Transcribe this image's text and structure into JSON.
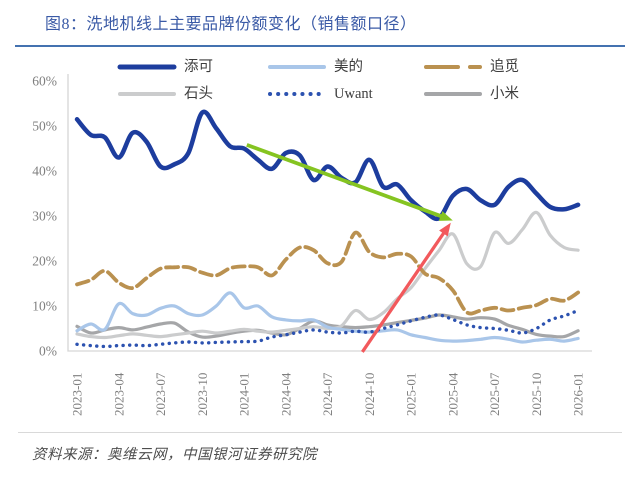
{
  "figure": {
    "title": "图8：洗地机线上主要品牌份额变化（销售额口径）",
    "source_note": "资料来源：奥维云网，中国银河证券研究院"
  },
  "colors": {
    "title_blue": "#3A5AA6",
    "title_rule_blue": "#4472B0",
    "axis_line": "#D6D6D6",
    "axis_text": "#7F7F7F",
    "legend_text": "#3D3D3D",
    "footer_text": "#4D4D4D",
    "green_arrow": "#85C421",
    "red_arrow": "#F2595C"
  },
  "chart_data": {
    "type": "line",
    "title": "洗地机线上主要品牌份额变化（销售额口径）",
    "xlabel": "",
    "ylabel": "",
    "ylim": [
      0,
      60
    ],
    "grid": false,
    "legend_position": "top",
    "y_tick_labels": [
      "0%",
      "10%",
      "20%",
      "30%",
      "40%",
      "50%",
      "60%"
    ],
    "x_tick_labels": [
      "2023-01",
      "2023-04",
      "2023-07",
      "2023-10",
      "2024-01",
      "2024-04",
      "2024-07",
      "2024-10",
      "2025-01",
      "2025-04",
      "2025-07",
      "2025-10",
      "2026-01"
    ],
    "x": [
      "2023-01",
      "2023-02",
      "2023-03",
      "2023-04",
      "2023-05",
      "2023-06",
      "2023-07",
      "2023-08",
      "2023-09",
      "2023-10",
      "2023-11",
      "2023-12",
      "2024-01",
      "2024-02",
      "2024-03",
      "2024-04",
      "2024-05",
      "2024-06",
      "2024-07",
      "2024-08",
      "2024-09",
      "2024-10",
      "2024-11",
      "2024-12",
      "2025-01",
      "2025-02",
      "2025-03",
      "2025-04",
      "2025-05",
      "2025-06",
      "2025-07",
      "2025-08",
      "2025-09",
      "2025-10",
      "2025-11",
      "2025-12",
      "2026-01"
    ],
    "series": [
      {
        "key": "tineco",
        "name": "添可",
        "color": "#1D3D9E",
        "width": 4.5,
        "dash": null,
        "values": [
          51.5,
          48,
          47.5,
          43,
          48.5,
          46.5,
          41,
          41.5,
          44,
          53,
          49.5,
          45.5,
          45,
          42.5,
          40.5,
          44,
          43.5,
          38,
          41,
          38.5,
          37.5,
          42.5,
          36.5,
          37,
          33.5,
          31,
          29.5,
          34.5,
          36,
          33.5,
          32.5,
          36.5,
          38,
          35,
          32,
          31.5,
          32.5
        ]
      },
      {
        "key": "meidi",
        "name": "美的",
        "color": "#A9C6E9",
        "width": 3.2,
        "dash": null,
        "values": [
          4.5,
          6,
          4.8,
          10.5,
          8.3,
          8,
          9.5,
          10,
          8.3,
          8,
          10,
          12.9,
          9.6,
          10,
          7.6,
          6.9,
          6.7,
          6.9,
          5.3,
          4.8,
          4.4,
          4.2,
          4.5,
          4.7,
          3.6,
          3,
          2.4,
          2.2,
          2.3,
          2.6,
          3,
          2.6,
          2,
          2.4,
          2.6,
          2.2,
          2.8
        ]
      },
      {
        "key": "zhuimi",
        "name": "追觅",
        "color": "#BA9150",
        "width": 3.8,
        "dash": "12 5.5",
        "values": [
          14.8,
          15.8,
          17.8,
          15.2,
          14,
          16.2,
          18.3,
          18.6,
          18.6,
          17.4,
          16.8,
          18.4,
          18.8,
          18.6,
          16.8,
          20.3,
          23,
          22.4,
          19.5,
          19.8,
          26.3,
          22,
          20.8,
          21.6,
          21,
          17.2,
          16.2,
          13.5,
          8.6,
          9,
          9.6,
          9,
          9.6,
          10.2,
          11.6,
          11.2,
          13
        ]
      },
      {
        "key": "shitou",
        "name": "石头",
        "color": "#CBCCCD",
        "width": 3.2,
        "dash": null,
        "values": [
          3.8,
          3.2,
          3,
          3.4,
          3.8,
          3.5,
          3.2,
          3.6,
          4,
          4.4,
          4,
          4.4,
          4.8,
          4.4,
          4.2,
          4.6,
          5,
          5.4,
          5,
          5.6,
          9,
          7,
          8.5,
          11.6,
          14.1,
          18.3,
          22.3,
          26,
          19.4,
          18.8,
          26.3,
          23.9,
          27,
          30.8,
          25.7,
          23,
          22.4
        ]
      },
      {
        "key": "uwant",
        "name": "Uwant",
        "color": "#2C52B0",
        "width": 3.4,
        "dash": "0.1 6.5",
        "values": [
          1.5,
          1.2,
          1,
          1.2,
          1.3,
          1.2,
          1.5,
          1.8,
          2,
          1.8,
          1.9,
          2,
          2.1,
          2.2,
          3.1,
          3.6,
          4.2,
          4.7,
          4.2,
          4,
          4.4,
          4.2,
          5,
          5.8,
          6.7,
          7.5,
          8,
          7,
          5.8,
          5.2,
          5,
          4.6,
          4,
          5,
          6.9,
          7.8,
          9
        ]
      },
      {
        "key": "xiaomi",
        "name": "小米",
        "color": "#A5A6A8",
        "width": 3.2,
        "dash": null,
        "values": [
          5.5,
          4,
          4.7,
          5.2,
          4.7,
          5.3,
          6,
          6.2,
          4.2,
          3.1,
          3.3,
          3.9,
          4.4,
          4.6,
          4,
          3.6,
          5,
          6.7,
          5.8,
          5.4,
          5.2,
          5.4,
          5.8,
          6.3,
          6.8,
          7.3,
          8,
          7.6,
          7.1,
          7.4,
          7.1,
          5.7,
          4.8,
          3.7,
          3.3,
          3.2,
          4.5
        ]
      }
    ],
    "annotations": [
      {
        "name": "decline-arrow",
        "shape": "arrow",
        "color": "#85C421",
        "stroke_width": 3.8,
        "from": {
          "month_index": 12.2,
          "value": 45.8
        },
        "to": {
          "month_index": 27.0,
          "value": 29.0
        }
      },
      {
        "name": "surge-arrow",
        "shape": "arrow",
        "color": "#F2595C",
        "stroke_width": 3.3,
        "from": {
          "month_index": 20.5,
          "value": -0.2
        },
        "to": {
          "month_index": 26.85,
          "value": 28.5
        }
      }
    ]
  }
}
